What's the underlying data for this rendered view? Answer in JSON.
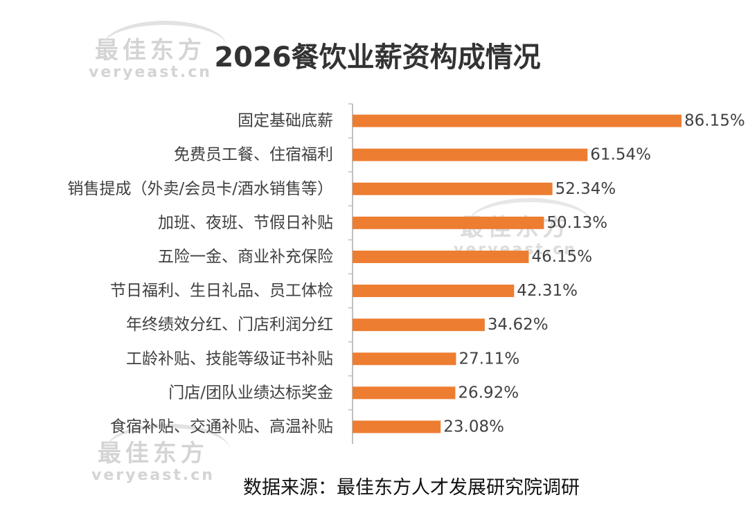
{
  "watermark": {
    "cn": "最佳东方",
    "en": "veryeast.cn"
  },
  "source": "数据来源：最佳东方人才发展研究院调研",
  "colors": {
    "bar": "#ED7D31",
    "axis": "#bfbfbf",
    "text": "#404040",
    "title": "#333333"
  },
  "chart_data": {
    "type": "bar",
    "orientation": "horizontal",
    "title": "2026餐饮业薪资构成情况",
    "xlabel": "",
    "ylabel": "",
    "unit": "%",
    "xlim": [
      0,
      100
    ],
    "grid": false,
    "legend": "none",
    "categories": [
      "固定基础底薪",
      "免费员工餐、住宿福利",
      "销售提成（外卖/会员卡/酒水销售等）",
      "加班、夜班、节假日补贴",
      "五险一金、商业补充保险",
      "节日福利、生日礼品、员工体检",
      "年终绩效分红、门店利润分红",
      "工龄补贴、技能等级证书补贴",
      "门店/团队业绩达标奖金",
      "食宿补贴、交通补贴、高温补贴"
    ],
    "values": [
      86.15,
      61.54,
      52.34,
      50.13,
      46.15,
      42.31,
      34.62,
      27.11,
      26.92,
      23.08
    ],
    "data_labels": [
      "86.15%",
      "61.54%",
      "52.34%",
      "50.13%",
      "46.15%",
      "42.31%",
      "34.62%",
      "27.11%",
      "26.92%",
      "23.08%"
    ]
  }
}
